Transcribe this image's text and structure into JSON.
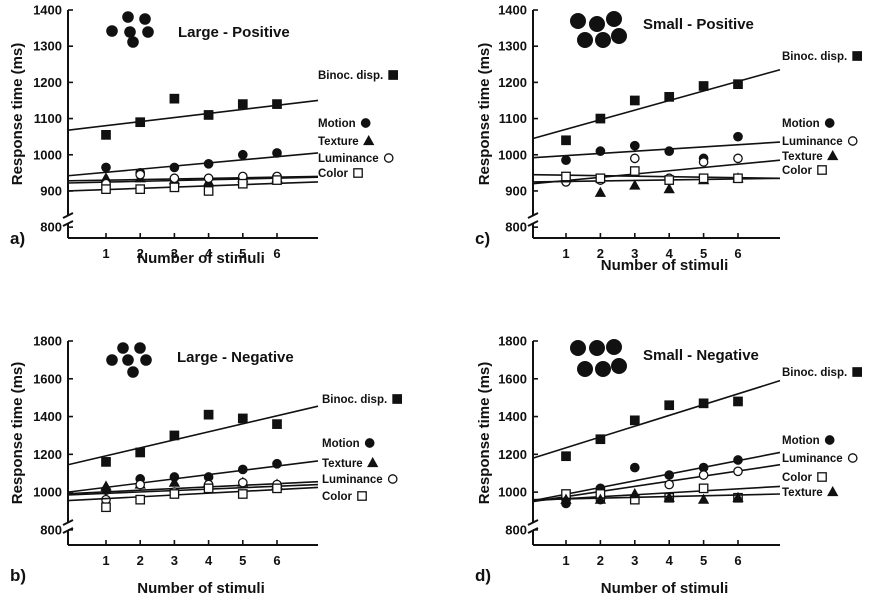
{
  "chart_data": [
    {
      "type": "scatter",
      "panel": "a)",
      "title": "Large - Positive",
      "xlabel": "Number of stimuli",
      "ylabel": "Response time (ms)",
      "x": [
        1,
        2,
        3,
        4,
        5,
        6
      ],
      "xticks": [
        "1",
        "2",
        "3",
        "4",
        "5",
        "6"
      ],
      "yticks": [
        "800",
        "900",
        "1000",
        "1100",
        "1200",
        "1300",
        "1400"
      ],
      "ylim": [
        770,
        1400
      ],
      "series": [
        {
          "name": "Binoc. disp.",
          "marker": "square-filled",
          "values": [
            1055,
            1090,
            1155,
            1110,
            1140,
            1140
          ],
          "fit": [
            1068,
            1150
          ]
        },
        {
          "name": "Motion",
          "marker": "circle-filled",
          "values": [
            965,
            950,
            965,
            975,
            1000,
            1005
          ],
          "fit": [
            942,
            1005
          ]
        },
        {
          "name": "Texture",
          "marker": "triangle-filled",
          "values": [
            935,
            935,
            930,
            925,
            935,
            935
          ],
          "fit": [
            928,
            940
          ]
        },
        {
          "name": "Luminance",
          "marker": "circle-open",
          "values": [
            920,
            945,
            935,
            935,
            940,
            940
          ],
          "fit": [
            922,
            938
          ]
        },
        {
          "name": "Color",
          "marker": "square-open",
          "values": [
            905,
            905,
            910,
            900,
            920,
            930
          ],
          "fit": [
            900,
            925
          ]
        }
      ]
    },
    {
      "type": "scatter",
      "panel": "c)",
      "title": "Small - Positive",
      "xlabel": "Number of stimuli",
      "ylabel": "Response time (ms)",
      "x": [
        1,
        2,
        3,
        4,
        5,
        6
      ],
      "xticks": [
        "1",
        "2",
        "3",
        "4",
        "5",
        "6"
      ],
      "yticks": [
        "800",
        "900",
        "1000",
        "1100",
        "1200",
        "1300",
        "1400"
      ],
      "ylim": [
        770,
        1400
      ],
      "series": [
        {
          "name": "Binoc. disp.",
          "marker": "square-filled",
          "values": [
            1040,
            1100,
            1150,
            1160,
            1190,
            1195
          ],
          "fit": [
            1045,
            1235
          ]
        },
        {
          "name": "Motion",
          "marker": "circle-filled",
          "values": [
            985,
            1010,
            1025,
            1010,
            990,
            1050
          ],
          "fit": [
            992,
            1035
          ]
        },
        {
          "name": "Luminance",
          "marker": "circle-open",
          "values": [
            925,
            930,
            990,
            935,
            980,
            990
          ],
          "fit": [
            920,
            985
          ]
        },
        {
          "name": "Texture",
          "marker": "triangle-filled",
          "values": [
            935,
            895,
            915,
            905,
            930,
            935
          ],
          "fit": [
            925,
            935
          ]
        },
        {
          "name": "Color",
          "marker": "square-open",
          "values": [
            940,
            935,
            955,
            930,
            935,
            935
          ],
          "fit": [
            945,
            935
          ]
        }
      ]
    },
    {
      "type": "scatter",
      "panel": "b)",
      "title": "Large - Negative",
      "xlabel": "Number of stimuli",
      "ylabel": "Response time (ms)",
      "x": [
        1,
        2,
        3,
        4,
        5,
        6
      ],
      "xticks": [
        "1",
        "2",
        "3",
        "4",
        "5",
        "6"
      ],
      "yticks": [
        "800",
        "1000",
        "1200",
        "1400",
        "1600",
        "1800"
      ],
      "ylim": [
        720,
        1800
      ],
      "series": [
        {
          "name": "Binoc. disp.",
          "marker": "square-filled",
          "values": [
            1160,
            1210,
            1300,
            1410,
            1390,
            1360
          ],
          "fit": [
            1145,
            1455
          ]
        },
        {
          "name": "Motion",
          "marker": "circle-filled",
          "values": [
            1010,
            1070,
            1080,
            1080,
            1120,
            1150
          ],
          "fit": [
            1000,
            1165
          ]
        },
        {
          "name": "Texture",
          "marker": "triangle-filled",
          "values": [
            1030,
            1040,
            1050,
            1050,
            1050,
            1040
          ],
          "fit": [
            992,
            1055
          ]
        },
        {
          "name": "Luminance",
          "marker": "circle-open",
          "values": [
            960,
            1040,
            1000,
            1040,
            1050,
            1040
          ],
          "fit": [
            985,
            1040
          ]
        },
        {
          "name": "Color",
          "marker": "square-open",
          "values": [
            920,
            960,
            990,
            1020,
            990,
            1020
          ],
          "fit": [
            955,
            1025
          ]
        }
      ]
    },
    {
      "type": "scatter",
      "panel": "d)",
      "title": "Small - Negative",
      "xlabel": "Number of stimuli",
      "ylabel": "Response time (ms)",
      "x": [
        1,
        2,
        3,
        4,
        5,
        6
      ],
      "xticks": [
        "1",
        "2",
        "3",
        "4",
        "5",
        "6"
      ],
      "yticks": [
        "800",
        "1000",
        "1200",
        "1400",
        "1600",
        "1800"
      ],
      "ylim": [
        720,
        1800
      ],
      "series": [
        {
          "name": "Binoc. disp.",
          "marker": "square-filled",
          "values": [
            1190,
            1280,
            1380,
            1460,
            1470,
            1480
          ],
          "fit": [
            1180,
            1590
          ]
        },
        {
          "name": "Motion",
          "marker": "circle-filled",
          "values": [
            940,
            1020,
            1130,
            1090,
            1130,
            1170
          ],
          "fit": [
            955,
            1210
          ]
        },
        {
          "name": "Luminance",
          "marker": "circle-open",
          "values": [
            960,
            960,
            960,
            1040,
            1090,
            1110
          ],
          "fit": [
            950,
            1145
          ]
        },
        {
          "name": "Color",
          "marker": "square-open",
          "values": [
            990,
            990,
            960,
            970,
            1020,
            970
          ],
          "fit": [
            955,
            1030
          ]
        },
        {
          "name": "Texture",
          "marker": "triangle-filled",
          "values": [
            960,
            960,
            990,
            970,
            960,
            970
          ],
          "fit": [
            960,
            990
          ]
        }
      ]
    }
  ]
}
